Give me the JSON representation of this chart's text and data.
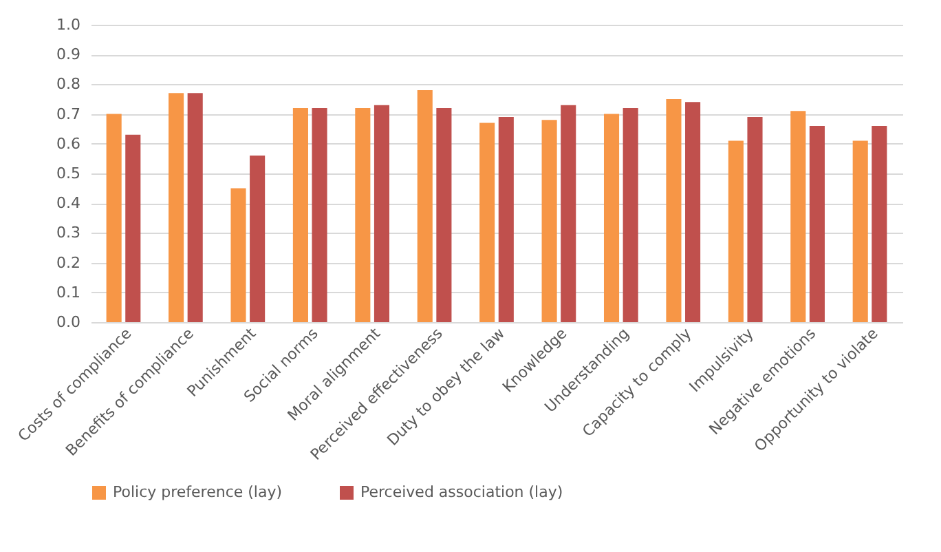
{
  "chart_data": {
    "type": "bar",
    "categories": [
      "Costs of compliance",
      "Benefits of compliance",
      "Punishment",
      "Social norms",
      "Moral alignment",
      "Perceived effectiveness",
      "Duty to obey the law",
      "Knowledge",
      "Understanding",
      "Capacity to comply",
      "Impulsivity",
      "Negative emotions",
      "Opportunity to violate"
    ],
    "series": [
      {
        "name": "Policy preference (lay)",
        "color": "#f79646",
        "values": [
          0.7,
          0.77,
          0.45,
          0.72,
          0.72,
          0.78,
          0.67,
          0.68,
          0.7,
          0.75,
          0.61,
          0.71,
          0.61
        ]
      },
      {
        "name": "Perceived association (lay)",
        "color": "#c0504d",
        "values": [
          0.63,
          0.77,
          0.56,
          0.72,
          0.73,
          0.72,
          0.69,
          0.73,
          0.72,
          0.74,
          0.69,
          0.66,
          0.66
        ]
      }
    ],
    "ylim": [
      0,
      1
    ],
    "yticks": [
      {
        "value": 0,
        "label": "0.0"
      },
      0.1,
      0.2,
      0.3,
      0.4,
      0.5,
      0.6,
      0.7,
      0.8,
      0.9,
      {
        "value": 1,
        "label": "1.0"
      }
    ],
    "grid": "y",
    "legend": "bottom"
  }
}
